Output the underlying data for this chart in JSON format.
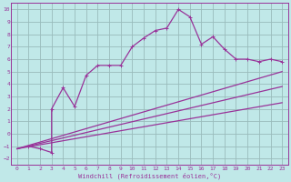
{
  "xlabel": "Windchill (Refroidissement éolien,°C)",
  "bg_color": "#c0e8e8",
  "line_color": "#993399",
  "grid_color": "#99bbbb",
  "xlim": [
    -0.5,
    23.5
  ],
  "ylim": [
    -2.5,
    10.5
  ],
  "xticks": [
    0,
    1,
    2,
    3,
    4,
    5,
    6,
    7,
    8,
    9,
    10,
    11,
    12,
    13,
    14,
    15,
    16,
    17,
    18,
    19,
    20,
    21,
    22,
    23
  ],
  "yticks": [
    -2,
    -1,
    0,
    1,
    2,
    3,
    4,
    5,
    6,
    7,
    8,
    9,
    10
  ],
  "series1_x": [
    1,
    2,
    3,
    3,
    4,
    5,
    6,
    7,
    8,
    9,
    10,
    11,
    12,
    13,
    14,
    15,
    16,
    17,
    18,
    19,
    20,
    21,
    22,
    23
  ],
  "series1_y": [
    -1.0,
    -1.2,
    -1.5,
    2.0,
    3.7,
    2.2,
    4.7,
    5.5,
    5.5,
    5.5,
    7.0,
    7.7,
    8.3,
    8.5,
    10.0,
    9.4,
    7.2,
    7.8,
    6.8,
    6.0,
    6.0,
    5.8,
    6.0,
    5.8
  ],
  "line2_x": [
    0,
    23
  ],
  "line2_y": [
    -1.2,
    5.0
  ],
  "line3_x": [
    0,
    23
  ],
  "line3_y": [
    -1.2,
    3.8
  ],
  "line4_x": [
    0,
    23
  ],
  "line4_y": [
    -1.2,
    2.5
  ]
}
